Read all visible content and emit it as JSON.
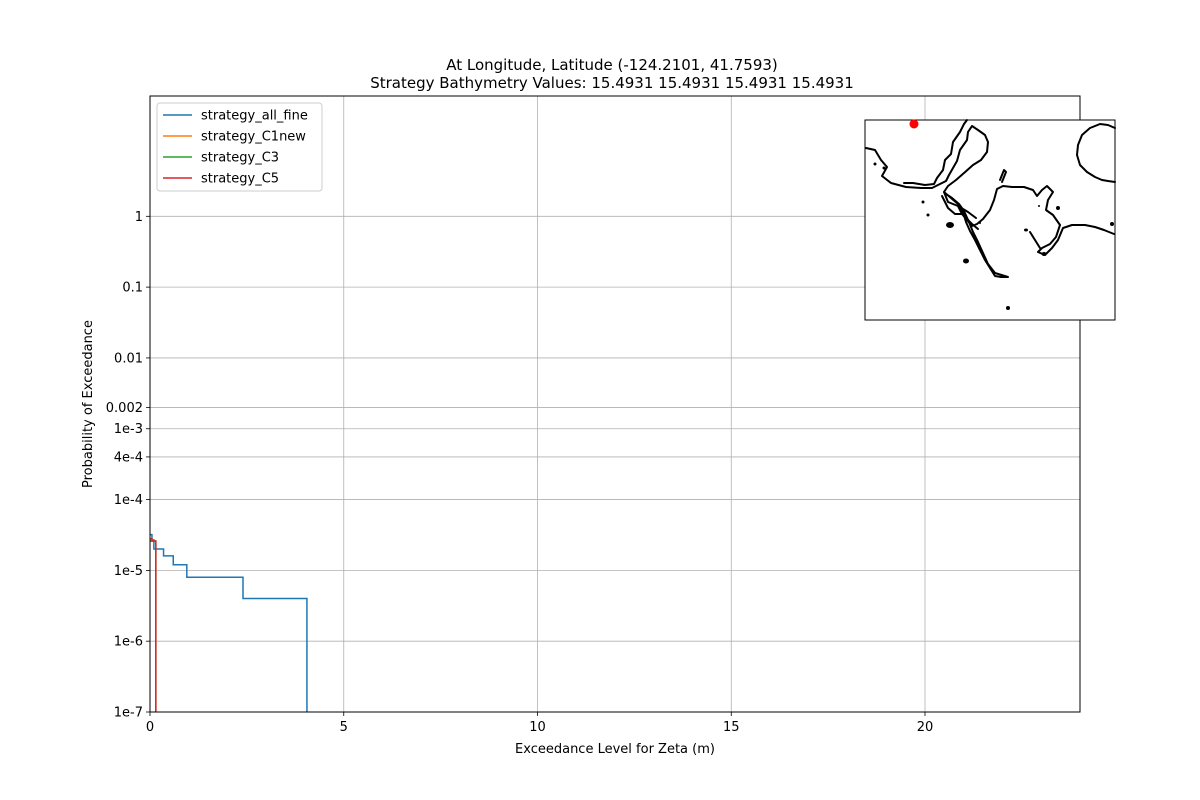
{
  "chart_data": {
    "type": "line",
    "title_line1": "At Longitude, Latitude (-124.2101,  41.7593)",
    "title_line2": "Strategy Bathymetry Values:   15.4931   15.4931   15.4931   15.4931",
    "xlabel": "Exceedance Level for Zeta (m)",
    "ylabel": "Probability of Exceedance",
    "xlim": [
      0,
      24
    ],
    "ylim": [
      1e-07,
      50
    ],
    "y_scale": "log",
    "grid": true,
    "legend_position": "top-left",
    "x_ticks": [
      {
        "value": 0,
        "label": "0"
      },
      {
        "value": 5,
        "label": "5"
      },
      {
        "value": 10,
        "label": "10"
      },
      {
        "value": 15,
        "label": "15"
      },
      {
        "value": 20,
        "label": "20"
      }
    ],
    "y_ticks": [
      {
        "value": 1,
        "label": "1"
      },
      {
        "value": 0.1,
        "label": "0.1"
      },
      {
        "value": 0.01,
        "label": "0.01"
      },
      {
        "value": 0.002,
        "label": "0.002"
      },
      {
        "value": 0.001,
        "label": "1e-3"
      },
      {
        "value": 0.0004,
        "label": "4e-4"
      },
      {
        "value": 0.0001,
        "label": "1e-4"
      },
      {
        "value": 1e-05,
        "label": "1e-5"
      },
      {
        "value": 1e-06,
        "label": "1e-6"
      },
      {
        "value": 1e-07,
        "label": "1e-7"
      }
    ],
    "series": [
      {
        "name": "strategy_all_fine",
        "color": "#1f77b4",
        "x": [
          0,
          0.05,
          0.05,
          0.1,
          0.1,
          0.35,
          0.35,
          0.6,
          0.6,
          0.95,
          0.95,
          2.4,
          2.4,
          4.05,
          4.05
        ],
        "y": [
          3.2e-05,
          3.2e-05,
          2.7e-05,
          2.7e-05,
          2e-05,
          2e-05,
          1.6e-05,
          1.6e-05,
          1.2e-05,
          1.2e-05,
          8e-06,
          8e-06,
          4e-06,
          4e-06,
          1e-07
        ]
      },
      {
        "name": "strategy_C1new",
        "color": "#ff7f0e",
        "x": [
          0,
          0.15,
          0.15
        ],
        "y": [
          2.6e-05,
          2.6e-05,
          1e-07
        ]
      },
      {
        "name": "strategy_C3",
        "color": "#2ca02c",
        "x": [
          0,
          0.15,
          0.15
        ],
        "y": [
          2.6e-05,
          2.6e-05,
          1e-07
        ]
      },
      {
        "name": "strategy_C5",
        "color": "#d62728",
        "x": [
          0,
          0.05,
          0.05,
          0.15,
          0.15
        ],
        "y": [
          2.8e-05,
          2.8e-05,
          2.6e-05,
          2.6e-05,
          1e-07
        ]
      }
    ]
  },
  "inset_map": {
    "marker_color": "#ff0000",
    "coastline_color": "#000000"
  }
}
